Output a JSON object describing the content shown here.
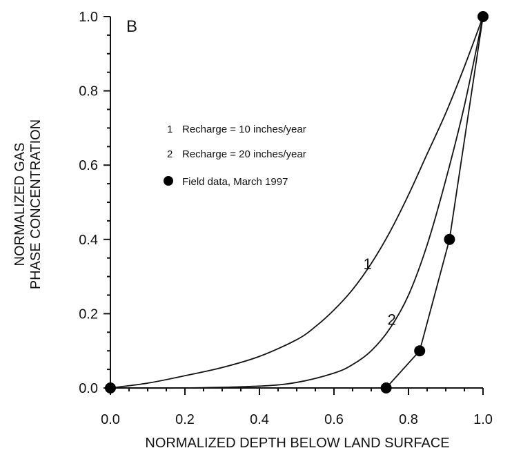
{
  "chart_data": {
    "type": "line",
    "panel_label": "B",
    "xlabel": "NORMALIZED DEPTH BELOW LAND SURFACE",
    "ylabel_lines": [
      "NORMALIZED GAS",
      "PHASE CONCENTRATION"
    ],
    "xlim": [
      0,
      1
    ],
    "ylim": [
      0,
      1
    ],
    "x_ticks": [
      {
        "value": 0.0,
        "label": "0.0"
      },
      {
        "value": 0.2,
        "label": "0.2"
      },
      {
        "value": 0.4,
        "label": "0.4"
      },
      {
        "value": 0.6,
        "label": "0.6"
      },
      {
        "value": 0.8,
        "label": "0.8"
      },
      {
        "value": 1.0,
        "label": "1.0"
      }
    ],
    "y_ticks": [
      {
        "value": 0.0,
        "label": "0.0"
      },
      {
        "value": 0.2,
        "label": "0.2"
      },
      {
        "value": 0.4,
        "label": "0.4"
      },
      {
        "value": 0.6,
        "label": "0.6"
      },
      {
        "value": 0.8,
        "label": "0.8"
      },
      {
        "value": 1.0,
        "label": "1.0"
      }
    ],
    "grid": false,
    "legend_position": "upper-left",
    "legend": [
      {
        "marker": "1",
        "text": "Recharge = 10 inches/year"
      },
      {
        "marker": "2",
        "text": "Recharge = 20 inches/year"
      },
      {
        "marker": "dot",
        "text": "Field data, March 1997"
      }
    ],
    "series": [
      {
        "name": "1",
        "style": "line",
        "x": [
          0.0,
          0.1,
          0.2,
          0.3,
          0.4,
          0.5,
          0.55,
          0.6,
          0.65,
          0.7,
          0.75,
          0.8,
          0.85,
          0.9,
          0.95,
          1.0
        ],
        "y": [
          0.0,
          0.013,
          0.033,
          0.055,
          0.085,
          0.13,
          0.165,
          0.21,
          0.265,
          0.335,
          0.42,
          0.52,
          0.63,
          0.74,
          0.865,
          1.0
        ]
      },
      {
        "name": "2",
        "style": "line",
        "x": [
          0.0,
          0.2,
          0.4,
          0.5,
          0.6,
          0.65,
          0.7,
          0.75,
          0.8,
          0.85,
          0.9,
          0.95,
          1.0
        ],
        "y": [
          0.0,
          0.0,
          0.005,
          0.015,
          0.04,
          0.063,
          0.1,
          0.16,
          0.25,
          0.385,
          0.56,
          0.76,
          1.0
        ]
      },
      {
        "name": "Field data, March 1997",
        "style": "markers",
        "x": [
          0.0,
          0.74,
          0.83,
          0.91,
          1.0
        ],
        "y": [
          0.0,
          0.0,
          0.1,
          0.4,
          1.0
        ]
      }
    ],
    "curve_labels": [
      {
        "text": "1",
        "x": 0.69,
        "y": 0.335
      },
      {
        "text": "2",
        "x": 0.755,
        "y": 0.185
      }
    ]
  }
}
